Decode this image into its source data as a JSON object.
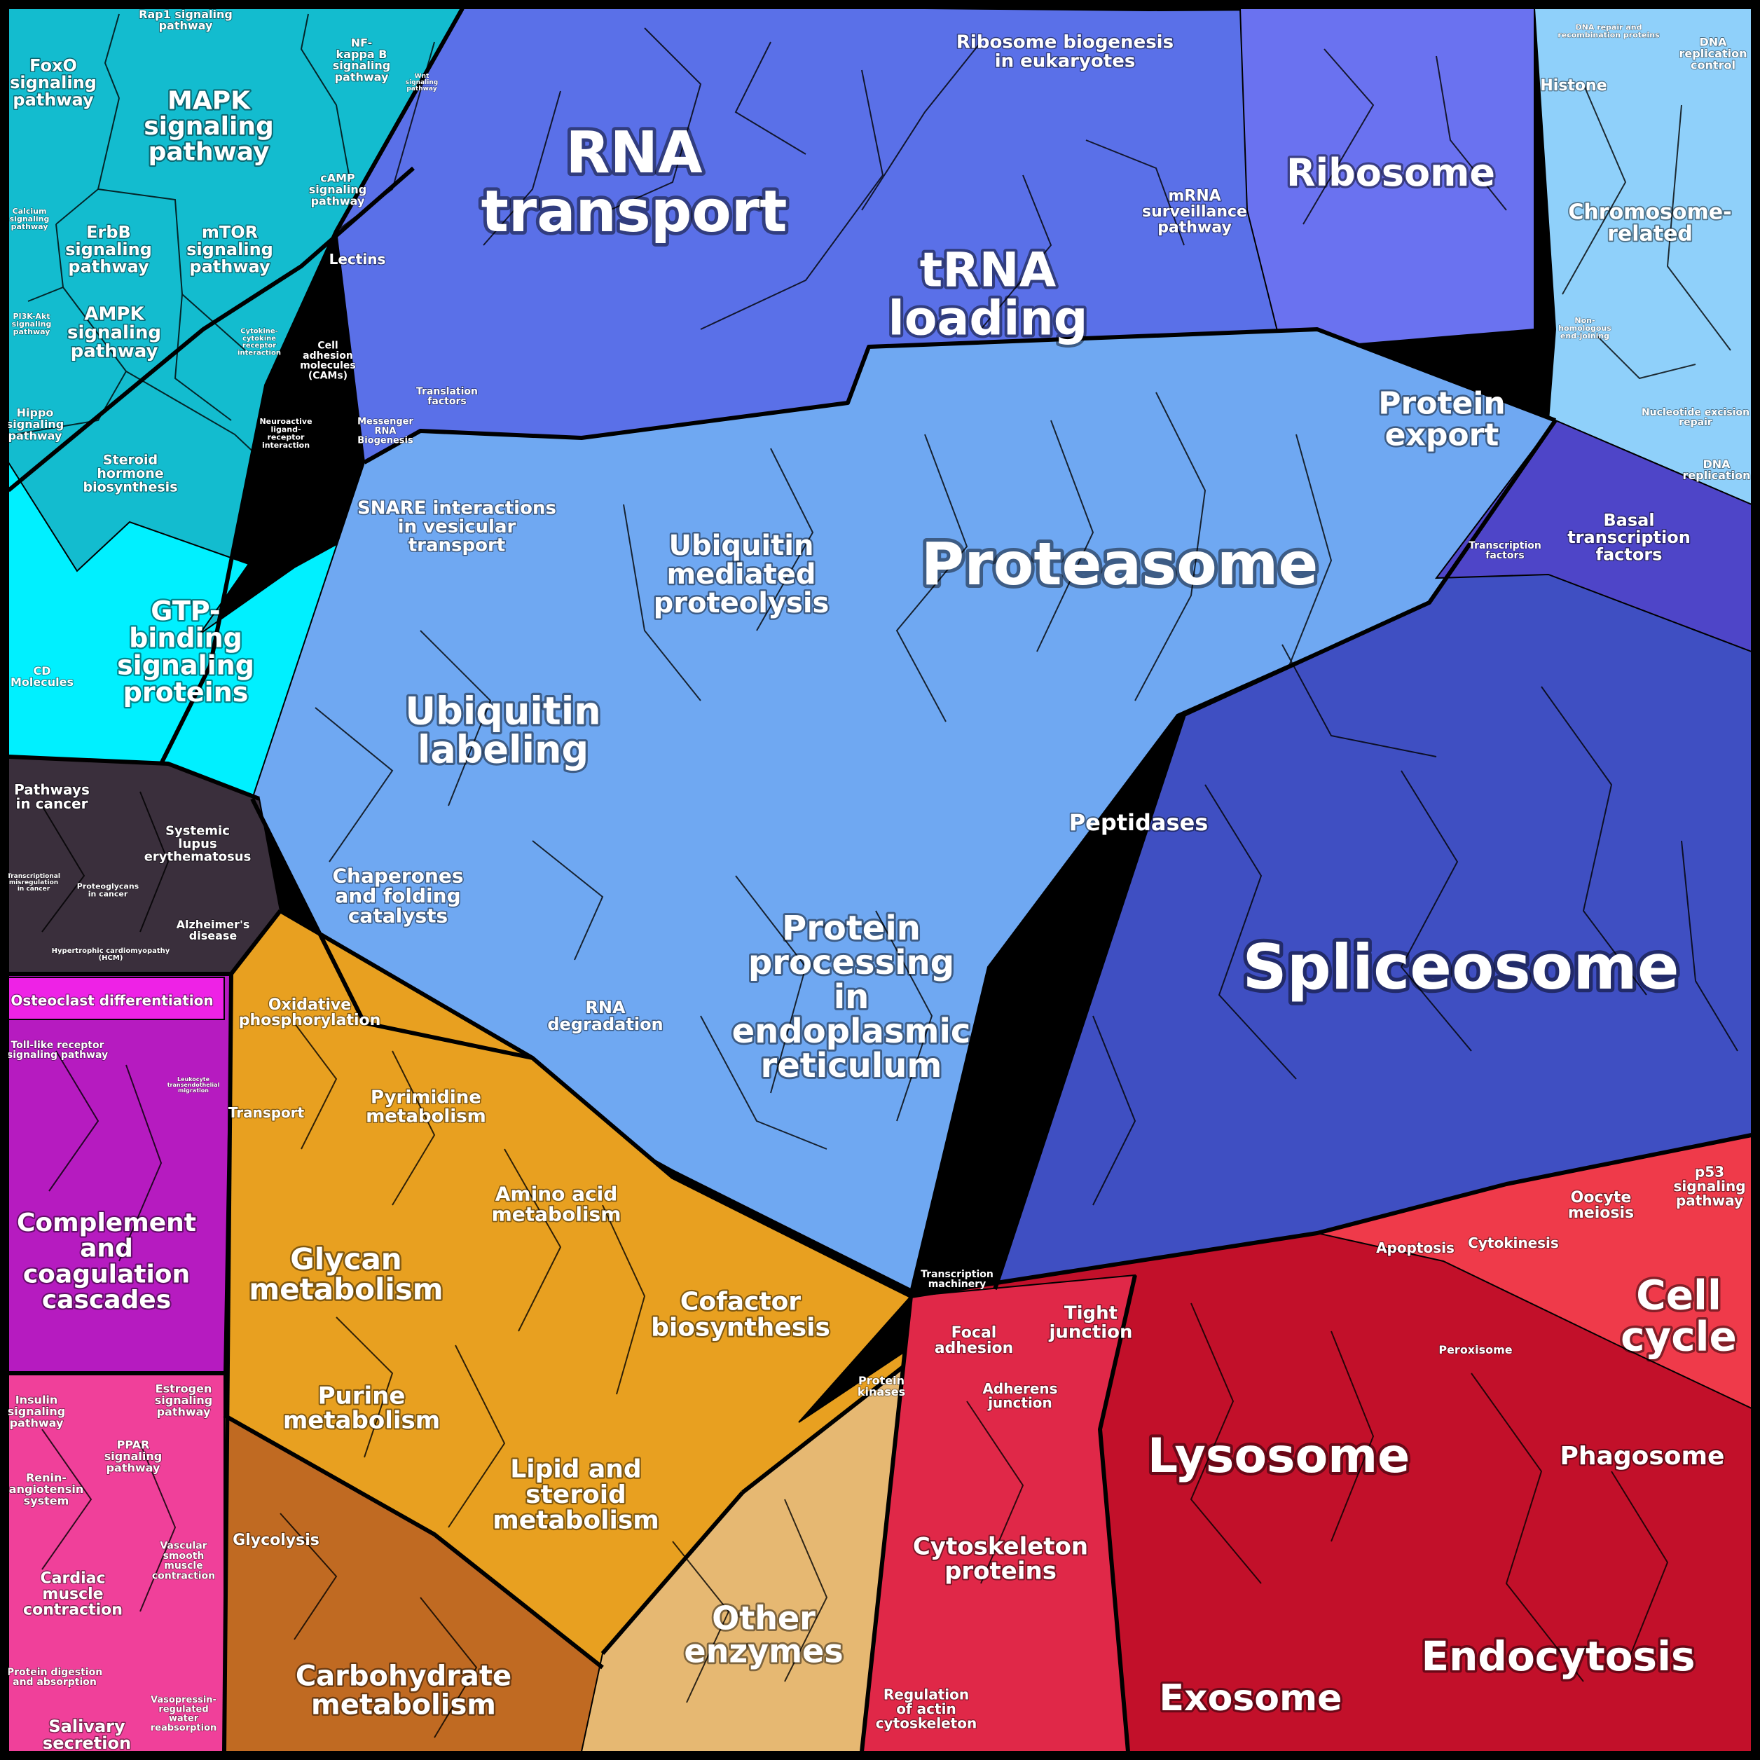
{
  "groups": [
    {
      "id": "signaling",
      "color": "#12c2d2"
    },
    {
      "id": "genetic",
      "color": "#5a72e6"
    },
    {
      "id": "protein",
      "color": "#6aa6f0"
    },
    {
      "id": "splice",
      "color": "#3f4ec0"
    },
    {
      "id": "metabolism",
      "color": "#e9a020"
    },
    {
      "id": "cellular",
      "color": "#c8102e"
    },
    {
      "id": "disease",
      "color": "#3a2f38"
    },
    {
      "id": "organismal",
      "color": "#d21fc8"
    }
  ],
  "labels": {
    "foxo": "FoxO signaling pathway",
    "rap1": "Rap1 signaling pathway",
    "mapk": "MAPK signaling pathway",
    "nfkb": "NF-kappa B signaling pathway",
    "wnt": "Wnt signaling pathway",
    "camp": "cAMP signaling pathway",
    "calcium": "Calcium signaling pathway",
    "erbb": "ErbB signaling pathway",
    "mtor": "mTOR signaling pathway",
    "lectins": "Lectins",
    "pi3k": "PI3K-Akt signaling pathway",
    "ampk": "AMPK signaling pathway",
    "cytokine": "Cytokine-cytokine receptor interaction",
    "cams": "Cell adhesion molecules (CAMs)",
    "hippo": "Hippo signaling pathway",
    "neuro": "Neuroactive ligand-receptor interaction",
    "steroid": "Steroid hormone biosynthesis",
    "gtp": "GTP-binding signaling proteins",
    "cd": "CD Molecules",
    "rna_transport": "RNA transport",
    "ribo_bio": "Ribosome biogenesis in eukaryotes",
    "trna": "tRNA loading",
    "mrna_surv": "mRNA surveillance pathway",
    "ribosome": "Ribosome",
    "translation": "Translation factors",
    "messenger": "Messenger RNA Biogenesis",
    "dna_repair": "DNA repair and recombination proteins",
    "dna_repl_ctrl": "DNA replication control",
    "histone": "Histone",
    "chromosome": "Chromosome-related",
    "nhej": "Non-homologous end-joining",
    "ner": "Nucleotide excision repair",
    "dna_repl": "DNA replication",
    "protein_export": "Protein export",
    "snare": "SNARE interactions in vesicular transport",
    "ubiq_med": "Ubiquitin mediated proteolysis",
    "proteasome": "Proteasome",
    "ubiq_lab": "Ubiquitin labeling",
    "peptidases": "Peptidases",
    "chaperones": "Chaperones and folding catalysts",
    "rna_deg": "RNA degradation",
    "er": "Protein processing in endoplasmic reticulum",
    "tf": "Transcription factors",
    "basal_tf": "Basal transcription factors",
    "spliceosome": "Spliceosome",
    "trans_mach": "Transcription machinery",
    "pathways_cancer": "Pathways in cancer",
    "sle": "Systemic lupus erythematosus",
    "trans_mis": "Transcriptional misregulation in cancer",
    "proteoglycans": "Proteoglycans in cancer",
    "alzheimer": "Alzheimer's disease",
    "hcm": "Hypertrophic cardiomyopathy (HCM)",
    "oxphos": "Oxidative phosphorylation",
    "transport": "Transport",
    "pyrimidine": "Pyrimidine metabolism",
    "amino": "Amino acid metabolism",
    "glycan": "Glycan metabolism",
    "cofactor": "Cofactor biosynthesis",
    "purine": "Purine metabolism",
    "lipid": "Lipid and steroid metabolism",
    "protein_kinases": "Protein kinases",
    "glycolysis": "Glycolysis",
    "carbohydrate": "Carbohydrate metabolism",
    "other_enzymes": "Other enzymes",
    "osteoclast": "Osteoclast differentiation",
    "tlr": "Toll-like receptor signaling pathway",
    "leukocyte": "Leukocyte transendothelial migration",
    "complement": "Complement and coagulation cascades",
    "insulin": "Insulin signaling pathway",
    "estrogen": "Estrogen signaling pathway",
    "ppar": "PPAR signaling pathway",
    "renin": "Renin-angiotensin system",
    "cardiac": "Cardiac muscle contraction",
    "vsmc": "Vascular smooth muscle contraction",
    "protein_digestion": "Protein digestion and absorption",
    "salivary": "Salivary secretion",
    "vasopressin": "Vasopressin-regulated water reabsorption",
    "apoptosis": "Apoptosis",
    "cytokinesis": "Cytokinesis",
    "oocyte": "Oocyte meiosis",
    "p53": "p53 signaling pathway",
    "cell_cycle": "Cell cycle",
    "focal": "Focal adhesion",
    "tight": "Tight junction",
    "peroxisome": "Peroxisome",
    "adherens": "Adherens junction",
    "lysosome": "Lysosome",
    "phagosome": "Phagosome",
    "cytoskeleton": "Cytoskeleton proteins",
    "reg_actin": "Regulation of actin cytoskeleton",
    "exosome": "Exosome",
    "endocytosis": "Endocytosis"
  }
}
